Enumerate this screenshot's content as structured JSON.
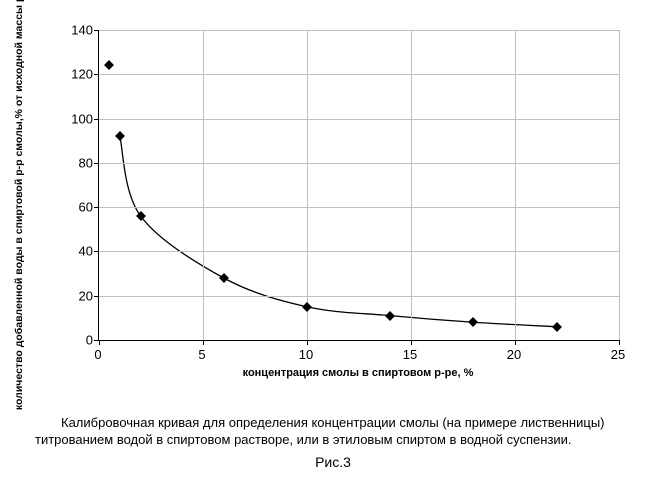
{
  "chart": {
    "type": "scatter-line",
    "xlabel": "концентрация смолы в спиртовом р-ре, %",
    "ylabel": "количество добавленной воды в спиртовой р-р смолы,% от исходной массы р-ра",
    "xlim": [
      0,
      25
    ],
    "ylim": [
      0,
      140
    ],
    "xtick_step": 5,
    "ytick_step": 20,
    "xticks": [
      0,
      5,
      10,
      15,
      20,
      25
    ],
    "yticks": [
      0,
      20,
      40,
      60,
      80,
      100,
      120,
      140
    ],
    "background_color": "#ffffff",
    "grid_color": "#c0c0c0",
    "axis_color": "#000000",
    "marker_color": "#000000",
    "line_color": "#000000",
    "line_width": 1.3,
    "marker_style": "diamond",
    "marker_size": 7,
    "label_fontsize": 11,
    "tick_fontsize": 13,
    "series": {
      "x": [
        0.5,
        1,
        2,
        6,
        10,
        14,
        18,
        22
      ],
      "y": [
        124,
        92,
        56,
        28,
        15,
        11,
        8,
        6
      ]
    }
  },
  "caption": "Калибровочная кривая для определения концентрации смолы (на примере лиственницы) титрованием водой в спиртовом растворе, или в этиловым спиртом в водной суспензии.",
  "fig_label": "Рис.3"
}
